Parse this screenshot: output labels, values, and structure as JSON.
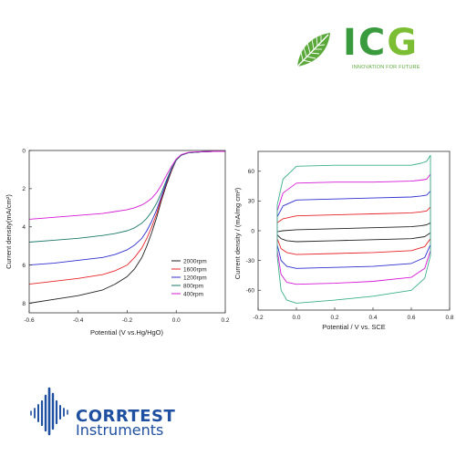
{
  "header_logo": {
    "brand": "ICG",
    "brand_parts": [
      "I",
      "C",
      "G"
    ],
    "tagline": "INNOVATION FOR FUTURE",
    "icon": "leaf-icon",
    "colors": {
      "dark_green": "#3a9a3e",
      "light_green": "#7cbe33"
    }
  },
  "footer_logo": {
    "name": "CORRTEST",
    "sub": "Instruments",
    "icon": "waveform-icon",
    "color": "#1e4fa0"
  },
  "chart_data": [
    {
      "type": "line",
      "title": "",
      "xlabel": "Potential (V vs.Hg/HgO)",
      "ylabel": "Current density(mA/cm²)",
      "xlim": [
        -0.6,
        0.2
      ],
      "ylim": [
        0,
        8.5
      ],
      "y_inverted": true,
      "xticks": [
        -0.6,
        -0.4,
        -0.2,
        0.0,
        0.2
      ],
      "xtick_labels": [
        "-0.6",
        "-0.4",
        "-0.2",
        "0.0",
        "0.2"
      ],
      "yticks": [
        0,
        2,
        4,
        6,
        8
      ],
      "ytick_labels": [
        "0",
        "2",
        "4",
        "6",
        "8"
      ],
      "grid": false,
      "legend": "bottom-right",
      "series": [
        {
          "name": "2000rpm",
          "color": "#222222",
          "x": [
            -0.6,
            -0.5,
            -0.4,
            -0.3,
            -0.25,
            -0.2,
            -0.17,
            -0.14,
            -0.12,
            -0.1,
            -0.08,
            -0.06,
            -0.04,
            -0.02,
            0.0,
            0.02,
            0.05,
            0.1,
            0.15,
            0.2
          ],
          "y": [
            8.0,
            7.8,
            7.6,
            7.3,
            7.0,
            6.6,
            6.2,
            5.6,
            5.0,
            4.3,
            3.5,
            2.6,
            1.8,
            1.1,
            0.5,
            0.25,
            0.12,
            0.07,
            0.05,
            0.05
          ]
        },
        {
          "name": "1600rpm",
          "color": "#e8242a",
          "x": [
            -0.6,
            -0.5,
            -0.4,
            -0.3,
            -0.25,
            -0.2,
            -0.17,
            -0.14,
            -0.12,
            -0.1,
            -0.08,
            -0.06,
            -0.04,
            -0.02,
            0.0,
            0.02,
            0.05,
            0.1,
            0.15,
            0.2
          ],
          "y": [
            7.0,
            6.85,
            6.7,
            6.5,
            6.3,
            6.0,
            5.6,
            5.1,
            4.6,
            4.0,
            3.3,
            2.5,
            1.7,
            1.05,
            0.5,
            0.25,
            0.12,
            0.07,
            0.05,
            0.05
          ]
        },
        {
          "name": "1200rpm",
          "color": "#2f2fd0",
          "x": [
            -0.6,
            -0.5,
            -0.4,
            -0.3,
            -0.25,
            -0.2,
            -0.17,
            -0.14,
            -0.12,
            -0.1,
            -0.08,
            -0.06,
            -0.04,
            -0.02,
            0.0,
            0.02,
            0.05,
            0.1,
            0.15,
            0.2
          ],
          "y": [
            6.0,
            5.9,
            5.75,
            5.6,
            5.45,
            5.2,
            4.95,
            4.6,
            4.2,
            3.7,
            3.1,
            2.4,
            1.65,
            1.0,
            0.5,
            0.25,
            0.12,
            0.07,
            0.05,
            0.05
          ]
        },
        {
          "name": "800rpm",
          "color": "#1a7a6a",
          "x": [
            -0.6,
            -0.5,
            -0.4,
            -0.3,
            -0.25,
            -0.2,
            -0.17,
            -0.14,
            -0.12,
            -0.1,
            -0.08,
            -0.06,
            -0.04,
            -0.02,
            0.0,
            0.02,
            0.05,
            0.1,
            0.15,
            0.2
          ],
          "y": [
            4.8,
            4.7,
            4.6,
            4.45,
            4.35,
            4.2,
            4.05,
            3.8,
            3.55,
            3.2,
            2.75,
            2.2,
            1.55,
            0.95,
            0.5,
            0.25,
            0.12,
            0.07,
            0.05,
            0.05
          ]
        },
        {
          "name": "400rpm",
          "color": "#d61ad6",
          "x": [
            -0.6,
            -0.5,
            -0.4,
            -0.3,
            -0.25,
            -0.2,
            -0.17,
            -0.14,
            -0.12,
            -0.1,
            -0.08,
            -0.06,
            -0.04,
            -0.02,
            0.0,
            0.02,
            0.05,
            0.1,
            0.15,
            0.2
          ],
          "y": [
            3.6,
            3.5,
            3.4,
            3.3,
            3.2,
            3.1,
            3.0,
            2.85,
            2.7,
            2.5,
            2.2,
            1.8,
            1.3,
            0.85,
            0.45,
            0.22,
            0.1,
            0.06,
            0.05,
            0.05
          ]
        }
      ]
    },
    {
      "type": "line",
      "title": "",
      "xlabel": "Potential / V vs. SCE",
      "ylabel": "Current density / (mA/mg cm²)",
      "xlim": [
        -0.2,
        0.8
      ],
      "ylim": [
        -80,
        80
      ],
      "xticks": [
        -0.2,
        0.0,
        0.2,
        0.4,
        0.6,
        0.8
      ],
      "xtick_labels": [
        "-0.2",
        "0.0",
        "0.2",
        "0.4",
        "0.6",
        "0.8"
      ],
      "yticks": [
        -60,
        -30,
        0,
        30,
        60
      ],
      "ytick_labels": [
        "-60",
        "-30",
        "0",
        "30",
        "60"
      ],
      "grid": false,
      "legend": "none",
      "series": [
        {
          "color": "#222222",
          "x": [
            -0.1,
            -0.08,
            -0.05,
            0.0,
            0.2,
            0.4,
            0.6,
            0.67,
            0.7,
            0.7,
            0.68,
            0.65,
            0.6,
            0.4,
            0.2,
            0.0,
            -0.07,
            -0.1,
            -0.1
          ],
          "y": [
            -4,
            -8,
            -10,
            -11,
            -10,
            -9,
            -8,
            -6,
            -2,
            8,
            6,
            5,
            4,
            3,
            2,
            1,
            0,
            -1,
            -4
          ]
        },
        {
          "color": "#e8242a",
          "x": [
            -0.1,
            -0.08,
            -0.05,
            0.0,
            0.2,
            0.4,
            0.6,
            0.67,
            0.7,
            0.7,
            0.68,
            0.65,
            0.6,
            0.4,
            0.2,
            0.0,
            -0.07,
            -0.1,
            -0.1
          ],
          "y": [
            -8,
            -18,
            -22,
            -24,
            -23,
            -22,
            -20,
            -16,
            -8,
            24,
            20,
            19,
            18,
            17,
            16,
            15,
            12,
            8,
            -8
          ]
        },
        {
          "color": "#2f2fd0",
          "x": [
            -0.1,
            -0.08,
            -0.05,
            0.0,
            0.2,
            0.4,
            0.6,
            0.67,
            0.7,
            0.7,
            0.68,
            0.65,
            0.6,
            0.4,
            0.2,
            0.0,
            -0.07,
            -0.1,
            -0.1
          ],
          "y": [
            -14,
            -30,
            -36,
            -38,
            -37,
            -36,
            -33,
            -27,
            -14,
            40,
            36,
            35,
            34,
            33,
            32,
            31,
            25,
            14,
            -14
          ]
        },
        {
          "color": "#d61ad6",
          "x": [
            -0.1,
            -0.08,
            -0.05,
            0.0,
            0.2,
            0.4,
            0.6,
            0.67,
            0.7,
            0.7,
            0.68,
            0.65,
            0.6,
            0.4,
            0.2,
            0.0,
            -0.07,
            -0.1,
            -0.1
          ],
          "y": [
            -20,
            -44,
            -52,
            -54,
            -53,
            -51,
            -47,
            -38,
            -20,
            57,
            52,
            51,
            50,
            49,
            49,
            48,
            38,
            20,
            -20
          ]
        },
        {
          "color": "#3ab08a",
          "x": [
            -0.1,
            -0.08,
            -0.05,
            0.0,
            0.2,
            0.4,
            0.6,
            0.67,
            0.7,
            0.7,
            0.68,
            0.65,
            0.6,
            0.4,
            0.2,
            0.0,
            -0.07,
            -0.1,
            -0.1
          ],
          "y": [
            -26,
            -60,
            -70,
            -73,
            -70,
            -66,
            -60,
            -48,
            -25,
            76,
            70,
            68,
            66,
            66,
            66,
            65,
            52,
            26,
            -26
          ]
        }
      ]
    }
  ]
}
